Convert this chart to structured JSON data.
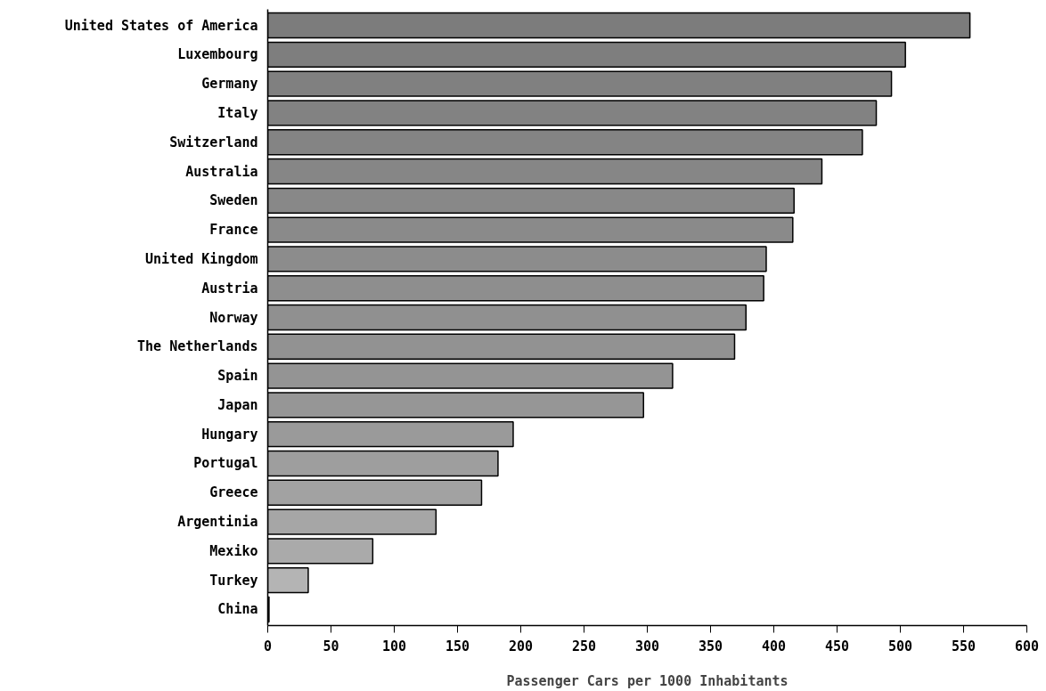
{
  "chart_data": {
    "type": "bar",
    "orientation": "horizontal",
    "xlabel": "Passenger Cars per 1000 Inhabitants",
    "categories": [
      "United States of America",
      "Luxembourg",
      "Germany",
      "Italy",
      "Switzerland",
      "Australia",
      "Sweden",
      "France",
      "United Kingdom",
      "Austria",
      "Norway",
      "The Netherlands",
      "Spain",
      "Japan",
      "Hungary",
      "Portugal",
      "Greece",
      "Argentinia",
      "Mexiko",
      "Turkey",
      "China"
    ],
    "values": [
      555,
      504,
      493,
      481,
      470,
      438,
      416,
      415,
      394,
      392,
      378,
      369,
      320,
      297,
      194,
      182,
      169,
      133,
      83,
      32,
      1
    ],
    "colors": [
      "#7c7c7c",
      "#7e7e7e",
      "#808080",
      "#828282",
      "#848484",
      "#868686",
      "#888888",
      "#8a8a8a",
      "#8c8c8c",
      "#8e8e8e",
      "#909090",
      "#929292",
      "#949494",
      "#969696",
      "#9a9a9a",
      "#9e9e9e",
      "#a2a2a2",
      "#a6a6a6",
      "#aaaaaa",
      "#b4b4b4",
      "#000000"
    ],
    "xlim": [
      0,
      600
    ],
    "xticks": [
      0,
      50,
      100,
      150,
      200,
      250,
      300,
      350,
      400,
      450,
      500,
      550,
      600
    ],
    "grid": false
  }
}
